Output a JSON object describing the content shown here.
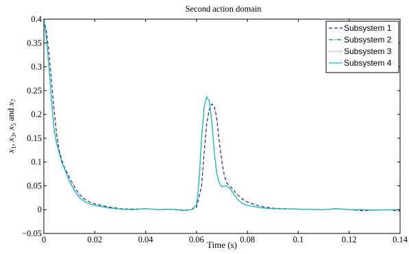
{
  "chart_data": {
    "type": "line",
    "title": "Second action domain",
    "xlabel": "Time (s)",
    "ylabel": "x_1, x_3, x_5 and x_7",
    "xlim": [
      0,
      0.14
    ],
    "ylim": [
      -0.05,
      0.4
    ],
    "xticks": [
      0,
      0.02,
      0.04,
      0.06,
      0.08,
      0.1,
      0.12,
      0.14
    ],
    "xtick_labels": [
      "0",
      "0.02",
      "0.04",
      "0.06",
      "0.08",
      "0.1",
      "0.12",
      "0.14"
    ],
    "yticks": [
      -0.05,
      0,
      0.05,
      0.1,
      0.15,
      0.2,
      0.25,
      0.3,
      0.35,
      0.4
    ],
    "ytick_labels": [
      "−0.05",
      "0",
      "0.05",
      "0.1",
      "0.15",
      "0.2",
      "0.25",
      "0.3",
      "0.35",
      "0.4"
    ],
    "grid": false,
    "legend_position": "top-right",
    "series": [
      {
        "name": "Subsystem 1",
        "color": "#1f1f9a",
        "style": "dashed",
        "points": [
          [
            0,
            0.4
          ],
          [
            0.001,
            0.375
          ],
          [
            0.002,
            0.33
          ],
          [
            0.003,
            0.27
          ],
          [
            0.004,
            0.21
          ],
          [
            0.005,
            0.16
          ],
          [
            0.006,
            0.125
          ],
          [
            0.007,
            0.105
          ],
          [
            0.008,
            0.09
          ],
          [
            0.01,
            0.068
          ],
          [
            0.012,
            0.048
          ],
          [
            0.014,
            0.032
          ],
          [
            0.016,
            0.022
          ],
          [
            0.018,
            0.016
          ],
          [
            0.02,
            0.012
          ],
          [
            0.025,
            0.006
          ],
          [
            0.03,
            0.002
          ],
          [
            0.035,
            0.001
          ],
          [
            0.04,
            0.002
          ],
          [
            0.045,
            0.0
          ],
          [
            0.05,
            0.001
          ],
          [
            0.055,
            -0.001
          ],
          [
            0.058,
            0.0
          ],
          [
            0.06,
            0.005
          ],
          [
            0.062,
            0.05
          ],
          [
            0.063,
            0.12
          ],
          [
            0.064,
            0.18
          ],
          [
            0.065,
            0.21
          ],
          [
            0.066,
            0.222
          ],
          [
            0.067,
            0.218
          ],
          [
            0.068,
            0.19
          ],
          [
            0.069,
            0.14
          ],
          [
            0.07,
            0.1
          ],
          [
            0.071,
            0.07
          ],
          [
            0.072,
            0.055
          ],
          [
            0.074,
            0.045
          ],
          [
            0.076,
            0.032
          ],
          [
            0.078,
            0.022
          ],
          [
            0.08,
            0.016
          ],
          [
            0.085,
            0.007
          ],
          [
            0.09,
            0.003
          ],
          [
            0.095,
            0.002
          ],
          [
            0.1,
            0.001
          ],
          [
            0.11,
            0.0
          ],
          [
            0.115,
            0.002
          ],
          [
            0.12,
            0.0
          ],
          [
            0.125,
            -0.002
          ],
          [
            0.13,
            -0.001
          ],
          [
            0.135,
            0.0
          ],
          [
            0.14,
            -0.003
          ]
        ]
      },
      {
        "name": "Subsystem 2",
        "color": "#0e7a5a",
        "style": "dashdot",
        "points": [
          [
            0,
            0.4
          ],
          [
            0.001,
            0.36
          ],
          [
            0.002,
            0.3
          ],
          [
            0.003,
            0.23
          ],
          [
            0.004,
            0.17
          ],
          [
            0.005,
            0.14
          ],
          [
            0.006,
            0.12
          ],
          [
            0.007,
            0.1
          ],
          [
            0.008,
            0.088
          ],
          [
            0.01,
            0.06
          ],
          [
            0.012,
            0.04
          ],
          [
            0.014,
            0.025
          ],
          [
            0.016,
            0.017
          ],
          [
            0.018,
            0.012
          ],
          [
            0.02,
            0.009
          ],
          [
            0.025,
            0.004
          ],
          [
            0.03,
            0.001
          ],
          [
            0.035,
            0.0
          ],
          [
            0.04,
            0.002
          ],
          [
            0.045,
            0.0
          ],
          [
            0.05,
            0.001
          ],
          [
            0.055,
            -0.002
          ],
          [
            0.058,
            0.0
          ],
          [
            0.06,
            0.01
          ],
          [
            0.061,
            0.06
          ],
          [
            0.062,
            0.15
          ],
          [
            0.063,
            0.215
          ],
          [
            0.064,
            0.237
          ],
          [
            0.065,
            0.228
          ],
          [
            0.066,
            0.185
          ],
          [
            0.067,
            0.12
          ],
          [
            0.068,
            0.075
          ],
          [
            0.069,
            0.055
          ],
          [
            0.07,
            0.048
          ],
          [
            0.071,
            0.05
          ],
          [
            0.072,
            0.049
          ],
          [
            0.073,
            0.045
          ],
          [
            0.074,
            0.038
          ],
          [
            0.076,
            0.022
          ],
          [
            0.078,
            0.013
          ],
          [
            0.08,
            0.009
          ],
          [
            0.085,
            0.004
          ],
          [
            0.09,
            0.002
          ],
          [
            0.1,
            0.001
          ],
          [
            0.11,
            0.0
          ],
          [
            0.115,
            0.002
          ],
          [
            0.12,
            0.0
          ],
          [
            0.125,
            0.0
          ],
          [
            0.13,
            -0.001
          ],
          [
            0.14,
            0.0
          ]
        ]
      },
      {
        "name": "Subsystem 3",
        "color": "#e0409a",
        "style": "dotted",
        "points": [
          [
            0,
            0.4
          ],
          [
            0.001,
            0.36
          ],
          [
            0.002,
            0.3
          ],
          [
            0.003,
            0.23
          ],
          [
            0.004,
            0.17
          ],
          [
            0.005,
            0.14
          ],
          [
            0.006,
            0.12
          ],
          [
            0.007,
            0.1
          ],
          [
            0.008,
            0.088
          ],
          [
            0.01,
            0.06
          ],
          [
            0.012,
            0.04
          ],
          [
            0.014,
            0.025
          ],
          [
            0.016,
            0.017
          ],
          [
            0.018,
            0.012
          ],
          [
            0.02,
            0.009
          ],
          [
            0.025,
            0.004
          ],
          [
            0.03,
            0.001
          ],
          [
            0.035,
            0.0
          ],
          [
            0.04,
            0.002
          ],
          [
            0.045,
            0.0
          ],
          [
            0.05,
            0.001
          ],
          [
            0.055,
            -0.002
          ],
          [
            0.058,
            0.0
          ],
          [
            0.06,
            0.01
          ],
          [
            0.061,
            0.06
          ],
          [
            0.062,
            0.15
          ],
          [
            0.063,
            0.215
          ],
          [
            0.064,
            0.237
          ],
          [
            0.065,
            0.228
          ],
          [
            0.066,
            0.185
          ],
          [
            0.067,
            0.12
          ],
          [
            0.068,
            0.075
          ],
          [
            0.069,
            0.055
          ],
          [
            0.07,
            0.048
          ],
          [
            0.071,
            0.05
          ],
          [
            0.072,
            0.049
          ],
          [
            0.073,
            0.045
          ],
          [
            0.074,
            0.038
          ],
          [
            0.076,
            0.022
          ],
          [
            0.078,
            0.013
          ],
          [
            0.08,
            0.009
          ],
          [
            0.085,
            0.004
          ],
          [
            0.09,
            0.002
          ],
          [
            0.1,
            0.001
          ],
          [
            0.11,
            0.0
          ],
          [
            0.115,
            0.002
          ],
          [
            0.12,
            0.0
          ],
          [
            0.125,
            0.0
          ],
          [
            0.13,
            -0.001
          ],
          [
            0.14,
            0.0
          ]
        ]
      },
      {
        "name": "Subsystem 4",
        "color": "#1fbfb0",
        "style": "solid",
        "points": [
          [
            0,
            0.4
          ],
          [
            0.001,
            0.36
          ],
          [
            0.002,
            0.3
          ],
          [
            0.003,
            0.23
          ],
          [
            0.004,
            0.17
          ],
          [
            0.005,
            0.14
          ],
          [
            0.006,
            0.12
          ],
          [
            0.007,
            0.1
          ],
          [
            0.008,
            0.088
          ],
          [
            0.01,
            0.06
          ],
          [
            0.012,
            0.04
          ],
          [
            0.014,
            0.025
          ],
          [
            0.016,
            0.017
          ],
          [
            0.018,
            0.012
          ],
          [
            0.02,
            0.009
          ],
          [
            0.025,
            0.004
          ],
          [
            0.03,
            0.001
          ],
          [
            0.035,
            0.0
          ],
          [
            0.04,
            0.002
          ],
          [
            0.045,
            0.0
          ],
          [
            0.05,
            0.001
          ],
          [
            0.055,
            -0.002
          ],
          [
            0.058,
            0.0
          ],
          [
            0.06,
            0.01
          ],
          [
            0.061,
            0.06
          ],
          [
            0.062,
            0.15
          ],
          [
            0.063,
            0.215
          ],
          [
            0.064,
            0.237
          ],
          [
            0.065,
            0.228
          ],
          [
            0.066,
            0.185
          ],
          [
            0.067,
            0.12
          ],
          [
            0.068,
            0.075
          ],
          [
            0.069,
            0.055
          ],
          [
            0.07,
            0.048
          ],
          [
            0.071,
            0.05
          ],
          [
            0.072,
            0.049
          ],
          [
            0.073,
            0.045
          ],
          [
            0.074,
            0.038
          ],
          [
            0.076,
            0.022
          ],
          [
            0.078,
            0.013
          ],
          [
            0.08,
            0.009
          ],
          [
            0.085,
            0.004
          ],
          [
            0.09,
            0.002
          ],
          [
            0.1,
            0.001
          ],
          [
            0.11,
            0.0
          ],
          [
            0.115,
            0.002
          ],
          [
            0.12,
            0.0
          ],
          [
            0.125,
            0.0
          ],
          [
            0.13,
            -0.001
          ],
          [
            0.14,
            0.0
          ]
        ]
      }
    ]
  }
}
